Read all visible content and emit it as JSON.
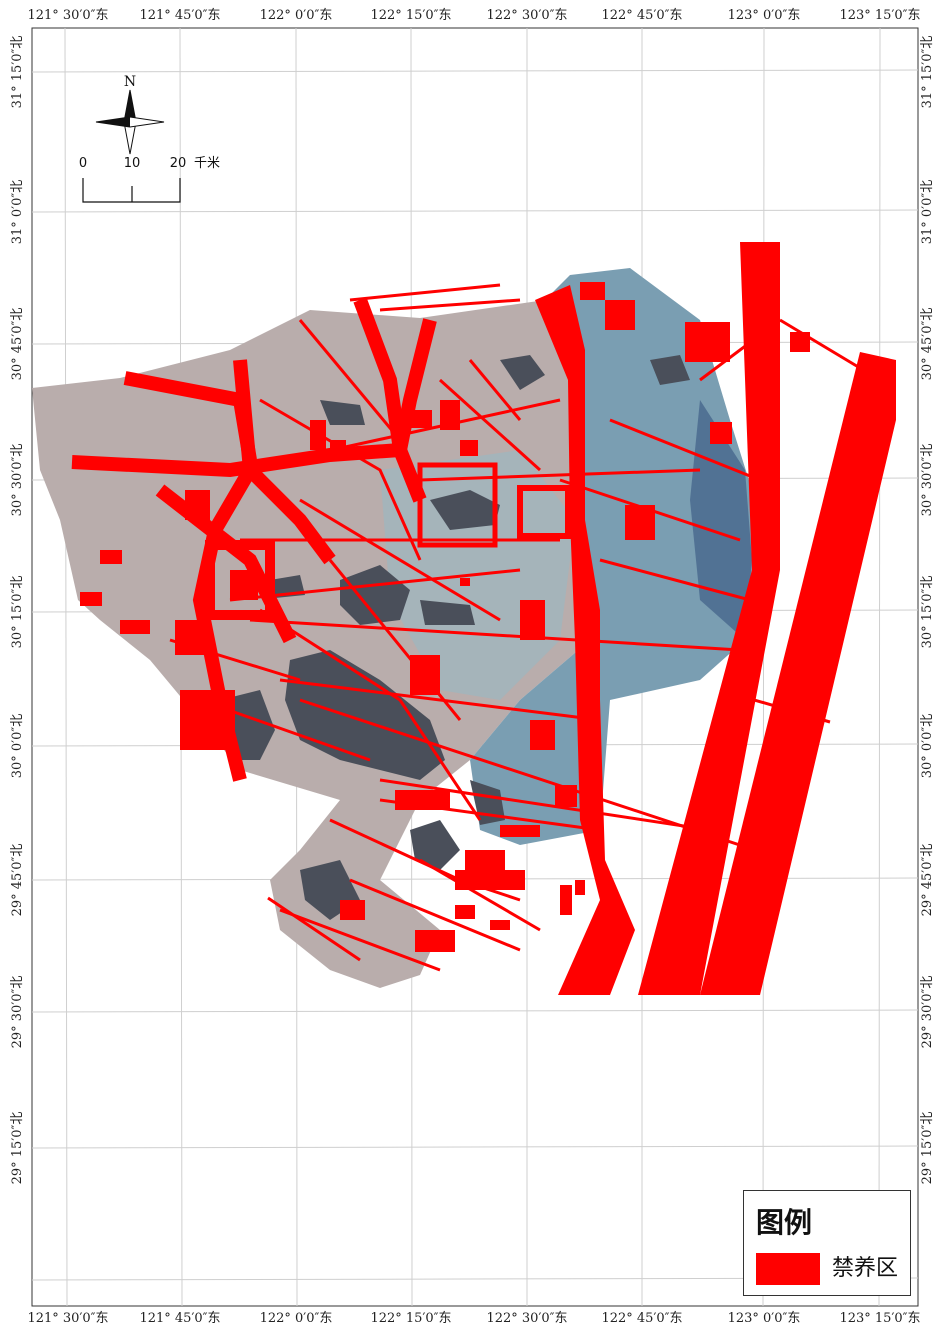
{
  "map": {
    "top_ticks": [
      "121° 30′0″东",
      "121° 45′0″东",
      "122° 0′0″东",
      "122° 15′0″东",
      "122° 30′0″东",
      "122° 45′0″东",
      "123° 0′0″东",
      "123° 15′0″东"
    ],
    "bottom_ticks": [
      "121° 30′0″东",
      "121° 45′0″东",
      "122° 0′0″东",
      "122° 15′0″东",
      "122° 30′0″东",
      "122° 45′0″东",
      "123° 0′0″东",
      "123° 15′0″东"
    ],
    "left_ticks": [
      "31° 15′0″北",
      "31° 0′0″北",
      "30° 45′0″北",
      "30° 30′0″北",
      "30° 15′0″北",
      "30° 0′0″北",
      "29° 45′0″北",
      "29° 30′0″北",
      "29° 15′0″北"
    ],
    "right_ticks": [
      "31° 15′0″北",
      "31° 0′0″北",
      "30° 45′0″北",
      "30° 30′0″北",
      "30° 15′0″北",
      "30° 0′0″北",
      "29° 45′0″北",
      "29° 30′0″北",
      "29° 15′0″北"
    ]
  },
  "north_arrow": {
    "label": "N"
  },
  "scale_bar": {
    "labels": [
      "0",
      "10",
      "20"
    ],
    "unit": "千米"
  },
  "legend": {
    "title": "图例",
    "items": [
      {
        "label": "禁养区",
        "color": "#ff0000"
      }
    ]
  },
  "colors": {
    "zone": "#ff0000",
    "sea": "#6f94a8",
    "land": "#b9adac",
    "island": "#4a4f5a"
  }
}
